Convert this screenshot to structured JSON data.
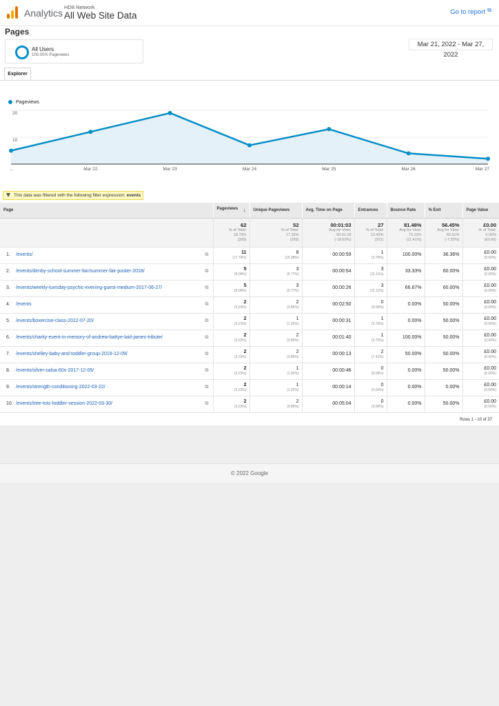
{
  "header": {
    "brand": "Analytics",
    "network": "HD8 Network",
    "property": "All Web Site Data",
    "goto_report": "Go to report",
    "external_icon": "external-link-icon"
  },
  "page_title": "Pages",
  "segment": {
    "name": "All Users",
    "sub": "100.00% Pageviews"
  },
  "date_range": "Mar 21, 2022 - Mar 27, 2022",
  "tab": "Explorer",
  "chart_data": {
    "type": "area",
    "series": [
      {
        "name": "Pageviews",
        "values": [
          5,
          12,
          19,
          7,
          13,
          4,
          2
        ]
      }
    ],
    "categories": [
      "...",
      "Mar 22",
      "Mar 23",
      "Mar 24",
      "Mar 25",
      "Mar 26",
      "Mar 27"
    ],
    "y_ticks": [
      "20",
      "10"
    ],
    "ylim": [
      0,
      20
    ],
    "grid": true,
    "legend": "top-left",
    "color": "#058dc7"
  },
  "filter": {
    "text": "This data was filtered with the following filter expression:",
    "expr": "events"
  },
  "table": {
    "headers": [
      "Page",
      "Pageviews",
      "Unique Pageviews",
      "Avg. Time on Page",
      "Entrances",
      "Bounce Rate",
      "% Exit",
      "Page Value"
    ],
    "sort_icon": "sort-down-arrow-icon",
    "totals": [
      {
        "main": "62",
        "sub": [
          "% of Total:",
          "18.79%",
          "(330)"
        ]
      },
      {
        "main": "52",
        "sub": [
          "% of Total:",
          "17.39%",
          "(299)"
        ]
      },
      {
        "main": "00:01:03",
        "sub": [
          "Avg for View:",
          "00:01:18",
          "(-18.62%)"
        ]
      },
      {
        "main": "27",
        "sub": [
          "% of Total:",
          "13.43%",
          "(201)"
        ]
      },
      {
        "main": "81.48%",
        "sub": [
          "Avg for View:",
          "73.13%",
          "(11.41%)"
        ]
      },
      {
        "main": "56.45%",
        "sub": [
          "Avg for View:",
          "60.91%",
          "(-7.32%)"
        ]
      },
      {
        "main": "£0.00",
        "sub": [
          "% of Total:",
          "0.00%",
          "(£0.00)"
        ]
      }
    ],
    "rows": [
      {
        "idx": "1.",
        "page": "/events/",
        "pv": "11",
        "pv_pct": "(17.74%)",
        "upv": "8",
        "upv_pct": "(15.38%)",
        "time": "00:00:59",
        "ent": "1",
        "ent_pct": "(3.70%)",
        "bounce": "100.00%",
        "exit": "36.36%",
        "value": "£0.00",
        "value_pct": "(0.00%)"
      },
      {
        "idx": "2.",
        "page": "/events/denby-school-summer-fair/summer-fair-poster-2018/",
        "pv": "5",
        "pv_pct": "(8.06%)",
        "upv": "3",
        "upv_pct": "(5.77%)",
        "time": "00:00:54",
        "ent": "3",
        "ent_pct": "(11.11%)",
        "bounce": "33.33%",
        "exit": "60.00%",
        "value": "£0.00",
        "value_pct": "(0.00%)"
      },
      {
        "idx": "3.",
        "page": "/events/weekly-tuesday-psychic-evening-guest-medium-2017-06-27/",
        "pv": "5",
        "pv_pct": "(8.06%)",
        "upv": "3",
        "upv_pct": "(5.77%)",
        "time": "00:00:26",
        "ent": "3",
        "ent_pct": "(11.11%)",
        "bounce": "66.67%",
        "exit": "60.00%",
        "value": "£0.00",
        "value_pct": "(0.00%)"
      },
      {
        "idx": "4.",
        "page": "/events",
        "pv": "2",
        "pv_pct": "(3.23%)",
        "upv": "2",
        "upv_pct": "(3.85%)",
        "time": "00:02:50",
        "ent": "0",
        "ent_pct": "(0.00%)",
        "bounce": "0.00%",
        "exit": "50.00%",
        "value": "£0.00",
        "value_pct": "(0.00%)"
      },
      {
        "idx": "5.",
        "page": "/events/boxercise-class-2022-07-20/",
        "pv": "2",
        "pv_pct": "(3.23%)",
        "upv": "1",
        "upv_pct": "(1.92%)",
        "time": "00:00:31",
        "ent": "1",
        "ent_pct": "(3.70%)",
        "bounce": "0.00%",
        "exit": "50.00%",
        "value": "£0.00",
        "value_pct": "(0.00%)"
      },
      {
        "idx": "6.",
        "page": "/events/charity-event-in-memory-of-andrew-battye-laid-james-tribute/",
        "pv": "2",
        "pv_pct": "(3.23%)",
        "upv": "2",
        "upv_pct": "(3.85%)",
        "time": "00:01:40",
        "ent": "1",
        "ent_pct": "(3.70%)",
        "bounce": "100.00%",
        "exit": "50.00%",
        "value": "£0.00",
        "value_pct": "(0.00%)"
      },
      {
        "idx": "7.",
        "page": "/events/shelley-baby-and-toddler-group-2019-12-09/",
        "pv": "2",
        "pv_pct": "(3.23%)",
        "upv": "2",
        "upv_pct": "(3.85%)",
        "time": "00:00:13",
        "ent": "2",
        "ent_pct": "(7.41%)",
        "bounce": "50.00%",
        "exit": "50.00%",
        "value": "£0.00",
        "value_pct": "(0.00%)"
      },
      {
        "idx": "8.",
        "page": "/events/silver-salsa-60s-2017-12-05/",
        "pv": "2",
        "pv_pct": "(3.23%)",
        "upv": "1",
        "upv_pct": "(1.92%)",
        "time": "00:00:46",
        "ent": "0",
        "ent_pct": "(0.00%)",
        "bounce": "0.00%",
        "exit": "50.00%",
        "value": "£0.00",
        "value_pct": "(0.00%)"
      },
      {
        "idx": "9.",
        "page": "/events/strength-conditioning-2022-03-22/",
        "pv": "2",
        "pv_pct": "(3.23%)",
        "upv": "1",
        "upv_pct": "(1.92%)",
        "time": "00:00:14",
        "ent": "0",
        "ent_pct": "(0.00%)",
        "bounce": "0.00%",
        "exit": "0.00%",
        "value": "£0.00",
        "value_pct": "(0.00%)"
      },
      {
        "idx": "10.",
        "page": "/events/tree-tots-toddler-session-2022-03-30/",
        "pv": "2",
        "pv_pct": "(3.23%)",
        "upv": "2",
        "upv_pct": "(3.85%)",
        "time": "00:05:04",
        "ent": "0",
        "ent_pct": "(0.00%)",
        "bounce": "0.00%",
        "exit": "50.00%",
        "value": "£0.00",
        "value_pct": "(0.00%)"
      }
    ],
    "copy_icon": "open-in-new-window-icon",
    "rows_info": "Rows 1 - 10 of 37"
  },
  "footer": "© 2022 Google"
}
